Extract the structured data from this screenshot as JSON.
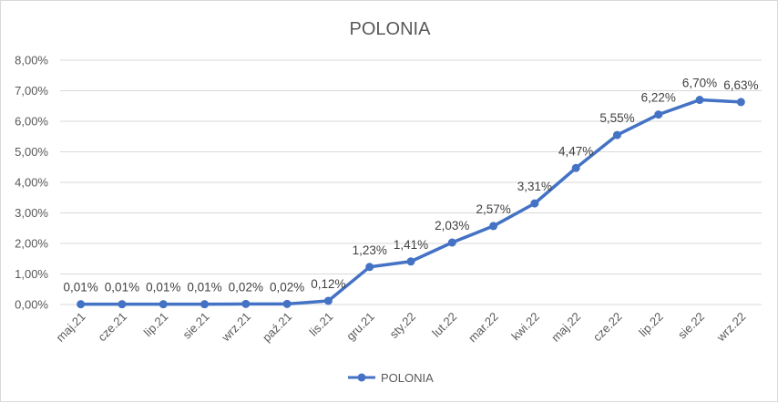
{
  "chart_data": {
    "type": "line",
    "title": "POLONIA",
    "xlabel": "",
    "ylabel": "",
    "categories": [
      "maj.21",
      "cze.21",
      "lip.21",
      "sie.21",
      "wrz.21",
      "paź.21",
      "lis.21",
      "gru.21",
      "sty.22",
      "lut.22",
      "mar.22",
      "kwi.22",
      "maj.22",
      "cze.22",
      "lip.22",
      "sie.22",
      "wrz.22"
    ],
    "series": [
      {
        "name": "POLONIA",
        "color": "#4472c4",
        "values": [
          0.01,
          0.01,
          0.01,
          0.01,
          0.02,
          0.02,
          0.12,
          1.23,
          1.41,
          2.03,
          2.57,
          3.31,
          4.47,
          5.55,
          6.22,
          6.7,
          6.63
        ],
        "labels": [
          "0,01%",
          "0,01%",
          "0,01%",
          "0,01%",
          "0,02%",
          "0,02%",
          "0,12%",
          "1,23%",
          "1,41%",
          "2,03%",
          "2,57%",
          "3,31%",
          "4,47%",
          "5,55%",
          "6,22%",
          "6,70%",
          "6,63%"
        ]
      }
    ],
    "ylim": [
      0,
      8
    ],
    "yticks": [
      0,
      1,
      2,
      3,
      4,
      5,
      6,
      7,
      8
    ],
    "ytick_labels": [
      "0,00%",
      "1,00%",
      "2,00%",
      "3,00%",
      "4,00%",
      "5,00%",
      "6,00%",
      "7,00%",
      "8,00%"
    ],
    "grid": true,
    "legend_position": "bottom"
  }
}
